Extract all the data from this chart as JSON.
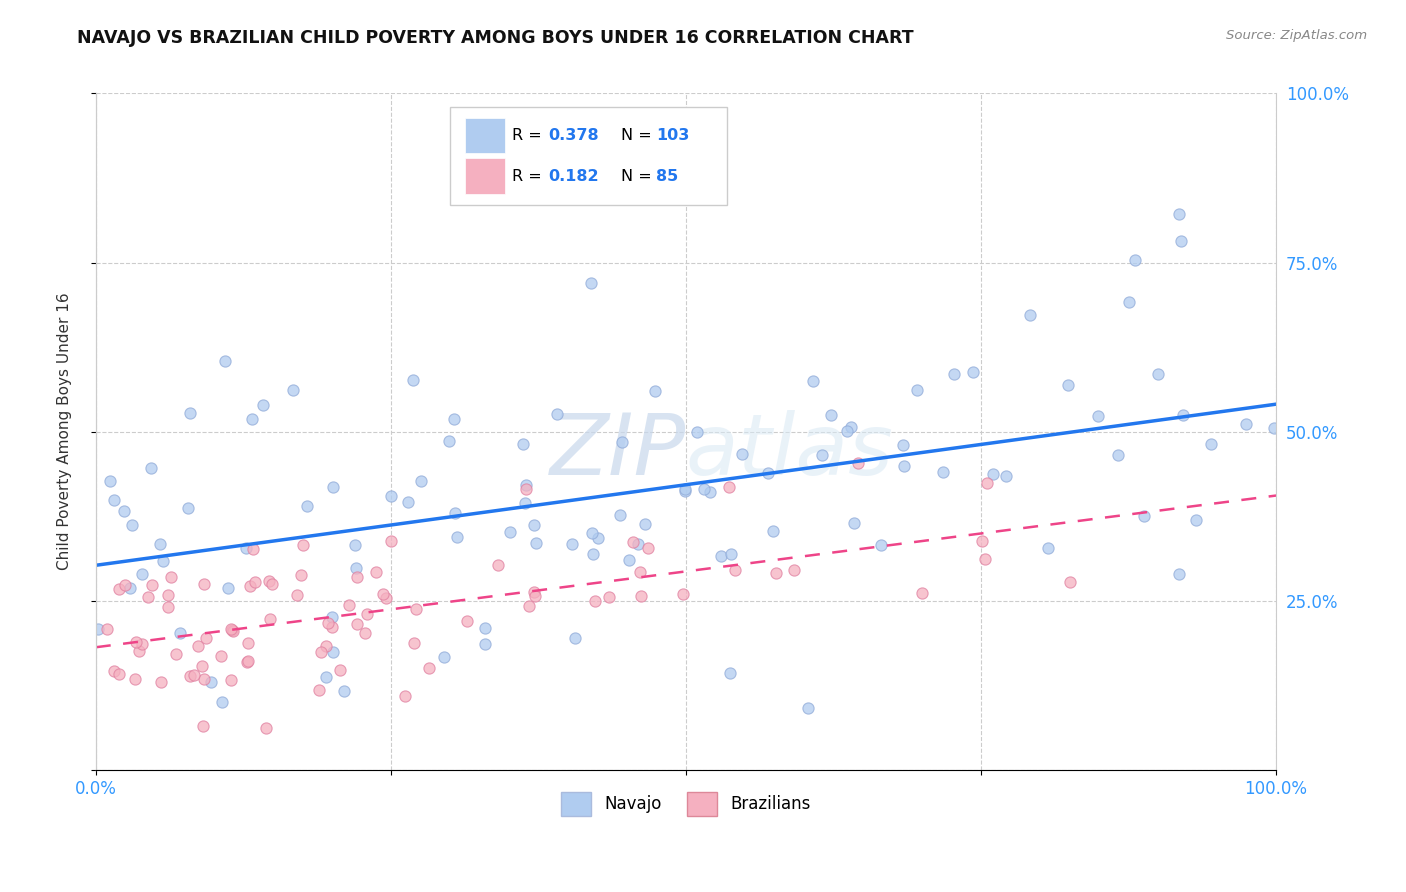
{
  "title": "NAVAJO VS BRAZILIAN CHILD POVERTY AMONG BOYS UNDER 16 CORRELATION CHART",
  "source": "Source: ZipAtlas.com",
  "ylabel": "Child Poverty Among Boys Under 16",
  "navajo_R": 0.378,
  "navajo_N": 103,
  "brazilian_R": 0.182,
  "brazilian_N": 85,
  "navajo_color": "#b0ccf0",
  "navajo_edge": "#90aad8",
  "brazilian_color": "#f5b0c0",
  "brazilian_edge": "#e080a0",
  "navajo_line_color": "#2277ee",
  "brazilian_line_color": "#ee4488",
  "watermark_color": "#d5e0ee",
  "legend_navajo": "Navajo",
  "legend_brazilian": "Brazilians",
  "bg_color": "#ffffff",
  "grid_color": "#cccccc",
  "title_color": "#111111",
  "source_color": "#888888",
  "tick_color": "#3399ff",
  "axis_label_color": "#333333"
}
